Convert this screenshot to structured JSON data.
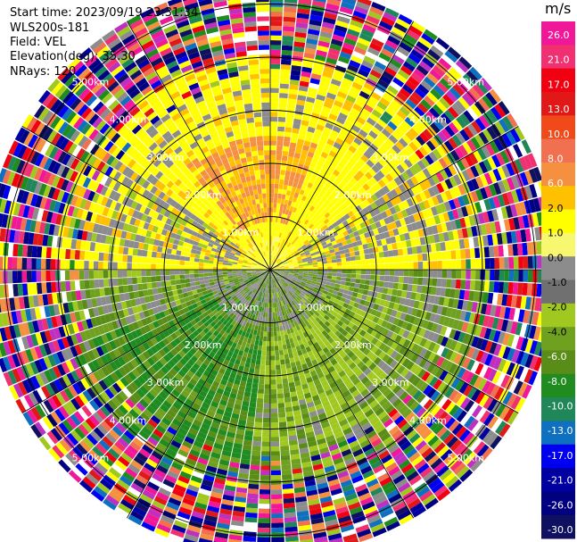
{
  "header": {
    "start_time": "Start time: 2023/09/19 23:31:34",
    "instrument": "WLS200s-181",
    "field": "Field: VEL",
    "elevation": "Elevation(deg): 35.30",
    "nrays": "NRays: 120"
  },
  "chart_data": {
    "type": "heatmap",
    "subtype": "polar-ppi",
    "field": "VEL",
    "unit": "m/s",
    "rays": 120,
    "range_rings_km": [
      1.0,
      2.0,
      3.0,
      4.0,
      5.0
    ],
    "ring_labels": [
      "1.00km",
      "2.00km",
      "3.00km",
      "4.00km",
      "5.00km"
    ],
    "max_range_km": 5.4,
    "spokes_deg": [
      0,
      30,
      60,
      90,
      120,
      150,
      180,
      210,
      240,
      270,
      300,
      330
    ],
    "colorbar": {
      "ticks": [
        "26.0",
        "21.0",
        "17.0",
        "13.0",
        "10.0",
        "8.0",
        "6.0",
        "2.0",
        "1.0",
        "0.0",
        "-1.0",
        "-2.0",
        "-4.0",
        "-6.0",
        "-8.0",
        "-10.0",
        "-13.0",
        "-17.0",
        "-21.0",
        "-26.0",
        "-30.0"
      ],
      "colors": [
        "#f01898",
        "#f03070",
        "#f00010",
        "#e01818",
        "#f04a1a",
        "#f07050",
        "#f49040",
        "#ffc000",
        "#ffff00",
        "#f8f870",
        "#8c8c8c",
        "#707070",
        "#a0c820",
        "#70a020",
        "#5a8c18",
        "#208c20",
        "#208858",
        "#1070c0",
        "#0000f0",
        "#0000a0",
        "#000080",
        "#101060"
      ]
    }
  }
}
